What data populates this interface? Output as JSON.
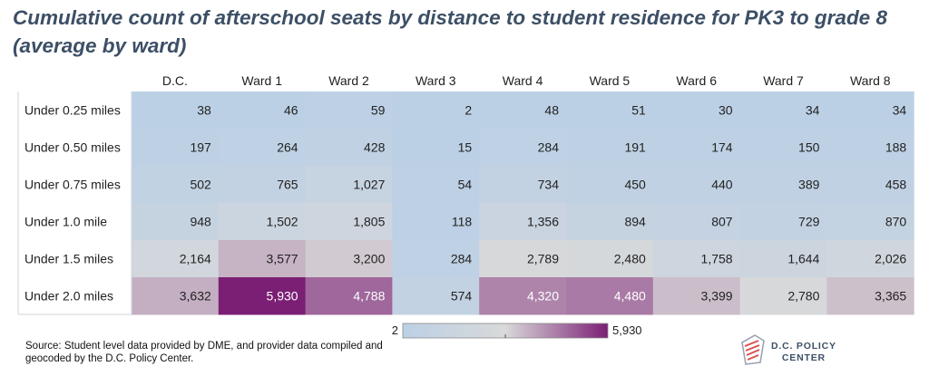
{
  "title": "Cumulative count of afterschool seats by distance to student residence for PK3 to grade 8 (average by ward)",
  "chart_data": {
    "type": "heatmap",
    "columns": [
      "D.C.",
      "Ward 1",
      "Ward 2",
      "Ward 3",
      "Ward 4",
      "Ward 5",
      "Ward 6",
      "Ward 7",
      "Ward 8"
    ],
    "rows": [
      "Under 0.25 miles",
      "Under 0.50 miles",
      "Under 0.75 miles",
      "Under 1.0 mile",
      "Under 1.5 miles",
      "Under 2.0 miles"
    ],
    "values": [
      [
        38,
        46,
        59,
        2,
        48,
        51,
        30,
        34,
        34
      ],
      [
        197,
        264,
        428,
        15,
        284,
        191,
        174,
        150,
        188
      ],
      [
        502,
        765,
        1027,
        54,
        734,
        450,
        440,
        389,
        458
      ],
      [
        948,
        1502,
        1805,
        118,
        1356,
        894,
        807,
        729,
        870
      ],
      [
        2164,
        3577,
        3200,
        284,
        2789,
        2480,
        1758,
        1644,
        2026
      ],
      [
        3632,
        5930,
        4788,
        574,
        4320,
        4480,
        3399,
        2780,
        3365
      ]
    ],
    "color_scale": {
      "min": 2,
      "max": 5930,
      "min_label": "2",
      "max_label": "5,930",
      "colors": [
        "#bcd0e5",
        "#d9d9d9",
        "#7b1f74"
      ]
    }
  },
  "source": "Source: Student level data provided by DME, and provider data compiled and geocoded by the D.C. Policy Center.",
  "logo": {
    "line1": "D.C. POLICY",
    "line2": "CENTER"
  }
}
